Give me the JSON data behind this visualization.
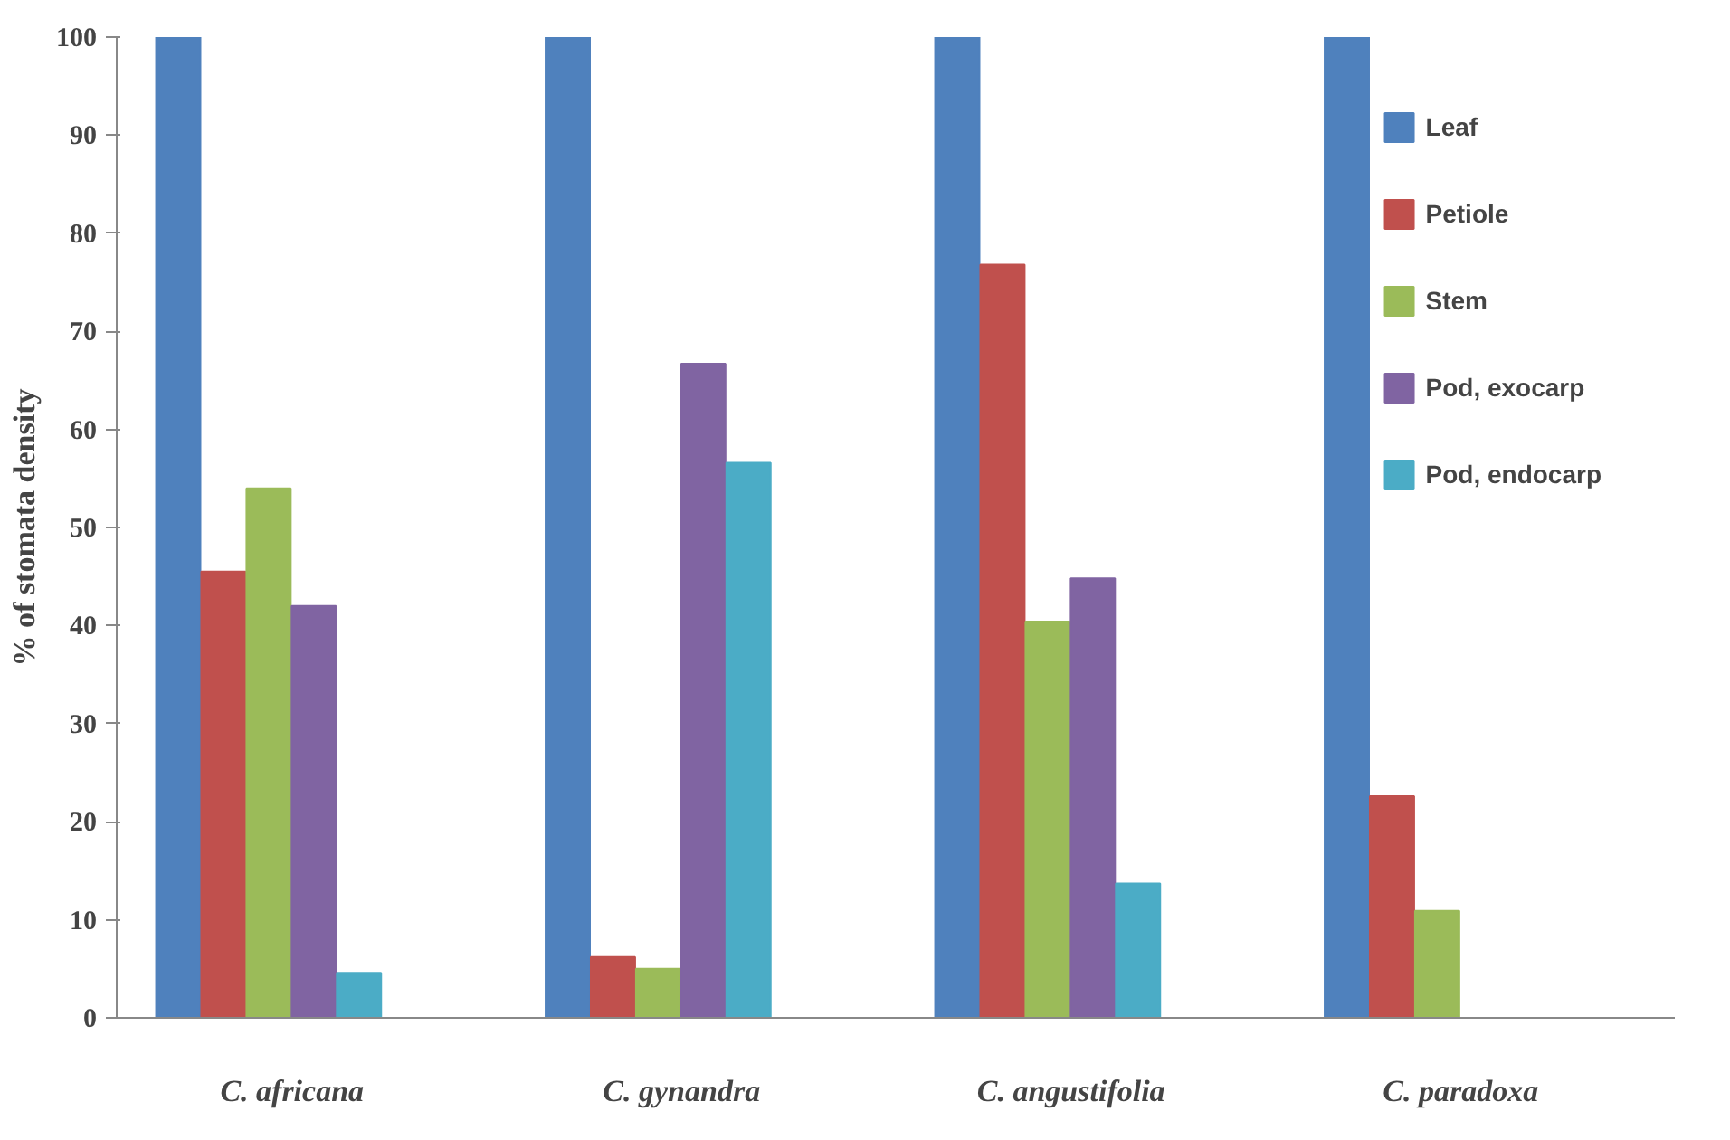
{
  "chart_data": {
    "type": "bar",
    "ylabel": "% of stomata density",
    "categories": [
      "C. africana",
      "C. gynandra",
      "C. angustifolia",
      "C. paradoxa"
    ],
    "series": [
      {
        "name": "Leaf",
        "color": "#4f81bd",
        "values": [
          100,
          100,
          100,
          100
        ]
      },
      {
        "name": "Petiole",
        "color": "#c0504d",
        "values": [
          45.5,
          6.2,
          76.8,
          22.6
        ]
      },
      {
        "name": "Stem",
        "color": "#9bbb59",
        "values": [
          54,
          5,
          40.4,
          10.9
        ]
      },
      {
        "name": "Pod, exocarp",
        "color": "#8064a2",
        "values": [
          42,
          66.7,
          44.8,
          null
        ]
      },
      {
        "name": "Pod, endocarp",
        "color": "#4bacc6",
        "values": [
          4.6,
          56.6,
          13.7,
          null
        ]
      }
    ],
    "ylim": [
      0,
      100
    ],
    "yticks": [
      0,
      10,
      20,
      30,
      40,
      50,
      60,
      70,
      80,
      90,
      100
    ],
    "grid": false,
    "legend": "top right"
  }
}
